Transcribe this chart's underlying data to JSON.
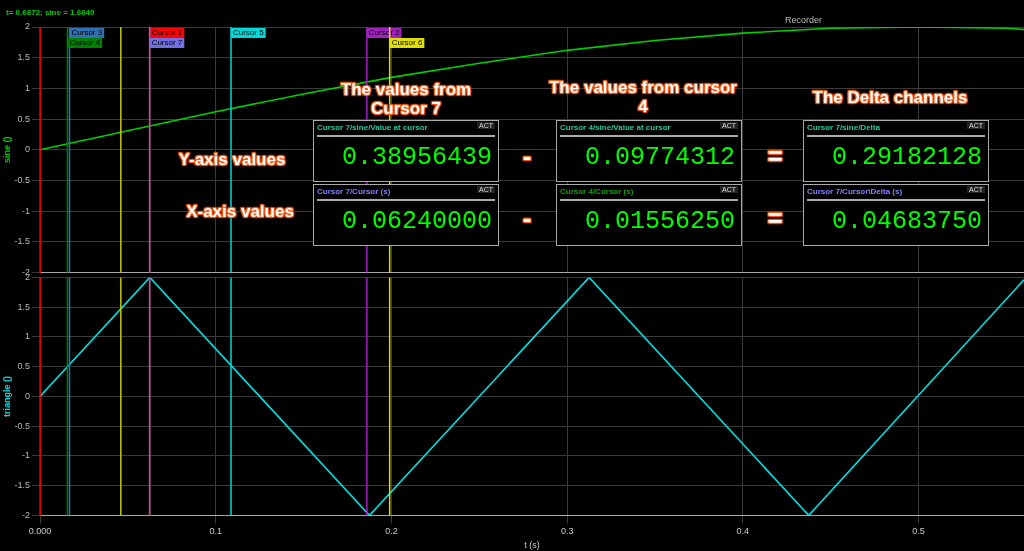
{
  "chart_data": [
    {
      "type": "line",
      "ylabel": "sine ()",
      "xlim": [
        0,
        0.56
      ],
      "ylim": [
        -2,
        2
      ],
      "yticks": [
        -2,
        -1.5,
        -1,
        -0.5,
        0,
        0.5,
        1,
        1.5,
        2
      ],
      "xticks": [
        0,
        0.1,
        0.2,
        0.3,
        0.4,
        0.5
      ],
      "grid": true,
      "legend": false,
      "marker": "none",
      "tick_labels": "y",
      "series": [
        {
          "color": "#00d000",
          "x": [
            0,
            0.05,
            0.1,
            0.15,
            0.2,
            0.25,
            0.3,
            0.35,
            0.4,
            0.45,
            0.5,
            0.55,
            0.56
          ],
          "values": [
            0,
            0.31,
            0.62,
            0.91,
            1.18,
            1.41,
            1.62,
            1.78,
            1.9,
            1.98,
            2,
            1.98,
            1.96
          ]
        }
      ],
      "ref_lines": [
        {
          "axis": "x",
          "value": 0,
          "label": null,
          "color": "#e00000"
        },
        {
          "axis": "x",
          "value": 0.0168,
          "label": "Cursor 3",
          "color": "#3070b0"
        },
        {
          "axis": "x",
          "value": 0.0156,
          "label": "Cursor 4",
          "color": "#008000"
        },
        {
          "axis": "x",
          "value": 0.046,
          "label": null,
          "color": "#c8c800"
        },
        {
          "axis": "x",
          "value": 0.0624,
          "label": "Cursor 1",
          "color": "#ff0000"
        },
        {
          "axis": "x",
          "value": 0.0624,
          "label": "Cursor 7",
          "color": "#7070e0"
        },
        {
          "axis": "x",
          "value": 0.1087,
          "label": "Cursor 5",
          "color": "#00d8d8"
        },
        {
          "axis": "x",
          "value": 0.186,
          "label": "Cursor 2",
          "color": "#a020c0"
        },
        {
          "axis": "x",
          "value": 0.199,
          "label": "Cursor 6",
          "color": "#e0e000"
        }
      ],
      "annotations": [
        "t= 0.6872; sine = 1.6640",
        "Recorder"
      ]
    },
    {
      "type": "line",
      "ylabel": "triangle ()",
      "xlabel": "t (s)",
      "xlim": [
        0,
        0.56
      ],
      "ylim": [
        -2,
        2
      ],
      "yticks": [
        -2,
        -1.5,
        -1,
        -0.5,
        0,
        0.5,
        1,
        1.5,
        2
      ],
      "xticks": [
        {
          "value": 0,
          "label": "0.000"
        },
        0.1,
        0.2,
        0.3,
        0.4,
        0.5
      ],
      "grid": true,
      "legend": false,
      "marker": "none",
      "series": [
        {
          "color": "#00e0e0",
          "x": [
            0,
            0.0625,
            0.1875,
            0.3125,
            0.4375,
            0.56
          ],
          "values": [
            0,
            2,
            -2,
            2,
            -2,
            1.96
          ]
        }
      ],
      "ref_lines": [
        {
          "axis": "x",
          "value": 0,
          "color": "#e00000"
        },
        {
          "axis": "x",
          "value": 0.0168,
          "color": "#3070b0"
        },
        {
          "axis": "x",
          "value": 0.0156,
          "color": "#008000"
        },
        {
          "axis": "x",
          "value": 0.046,
          "color": "#c8c800"
        },
        {
          "axis": "x",
          "value": 0.0624,
          "color": "#ff0000"
        },
        {
          "axis": "x",
          "value": 0.0624,
          "color": "#7070e0"
        },
        {
          "axis": "x",
          "value": 0.1087,
          "color": "#00d8d8"
        },
        {
          "axis": "x",
          "value": 0.186,
          "color": "#a020c0"
        },
        {
          "axis": "x",
          "value": 0.199,
          "color": "#e0e000"
        }
      ]
    },
    {
      "type": "other",
      "annotations": [
        "The values from Cursor 7",
        "The values from cursor 4",
        "The Delta channels",
        "Y-axis values",
        "X-axis values",
        "-",
        "-",
        "=",
        "=",
        "Cursor 7/sine/Value at cursor",
        "ACT",
        "0.38956439",
        "Cursor 4/sine/Value at cursor",
        "ACT",
        "0.09774312",
        "Cursor 7/sine/Delta",
        "ACT",
        "0.29182128",
        "Cursor 7/Cursor (s)",
        "ACT",
        "0.06240000",
        "Cursor 4/Cursor (s)",
        "ACT",
        "0.01556250",
        "Cursor 7/Cursor\\Delta (s)",
        "ACT",
        "0.04683750"
      ]
    }
  ]
}
